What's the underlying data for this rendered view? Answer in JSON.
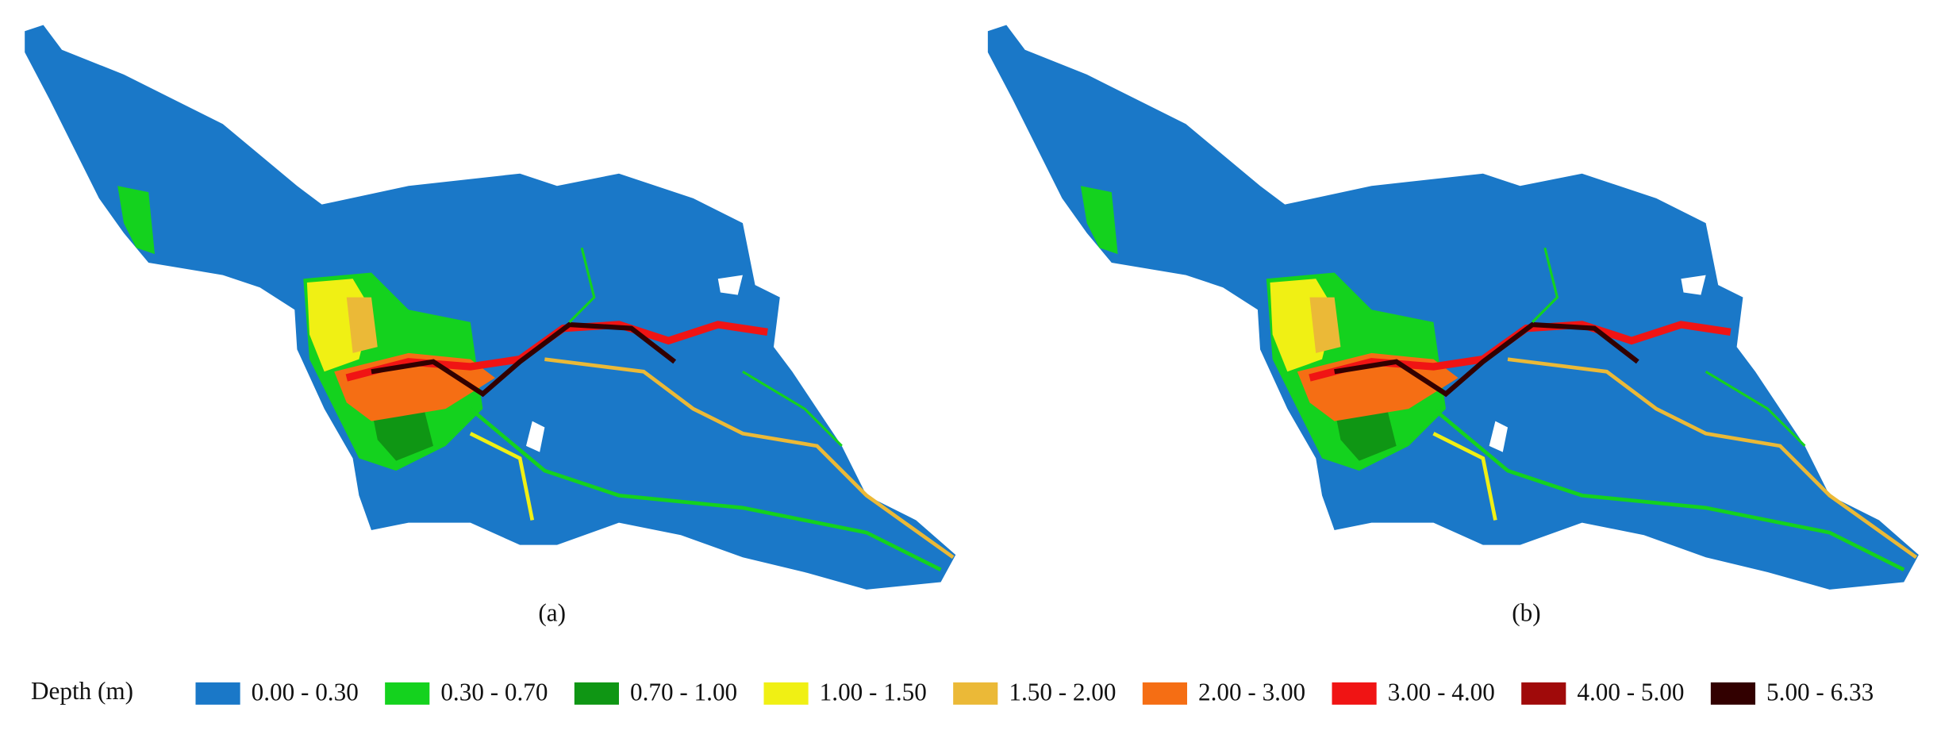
{
  "panels": [
    {
      "label": "(a)"
    },
    {
      "label": "(b)"
    }
  ],
  "legend": {
    "title": "Depth (m)",
    "items": [
      {
        "label": "0.00 - 0.30",
        "color": "#1a78c8"
      },
      {
        "label": "0.30 - 0.70",
        "color": "#14d21e"
      },
      {
        "label": "0.70 - 1.00",
        "color": "#0f9614"
      },
      {
        "label": "1.00 - 1.50",
        "color": "#f0f014"
      },
      {
        "label": "1.50 - 2.00",
        "color": "#ebb937"
      },
      {
        "label": "2.00 - 3.00",
        "color": "#f56e14"
      },
      {
        "label": "3.00 - 4.00",
        "color": "#f01414"
      },
      {
        "label": "4.00 - 5.00",
        "color": "#a00a0a"
      },
      {
        "label": "5.00 - 6.33",
        "color": "#320000"
      }
    ]
  }
}
